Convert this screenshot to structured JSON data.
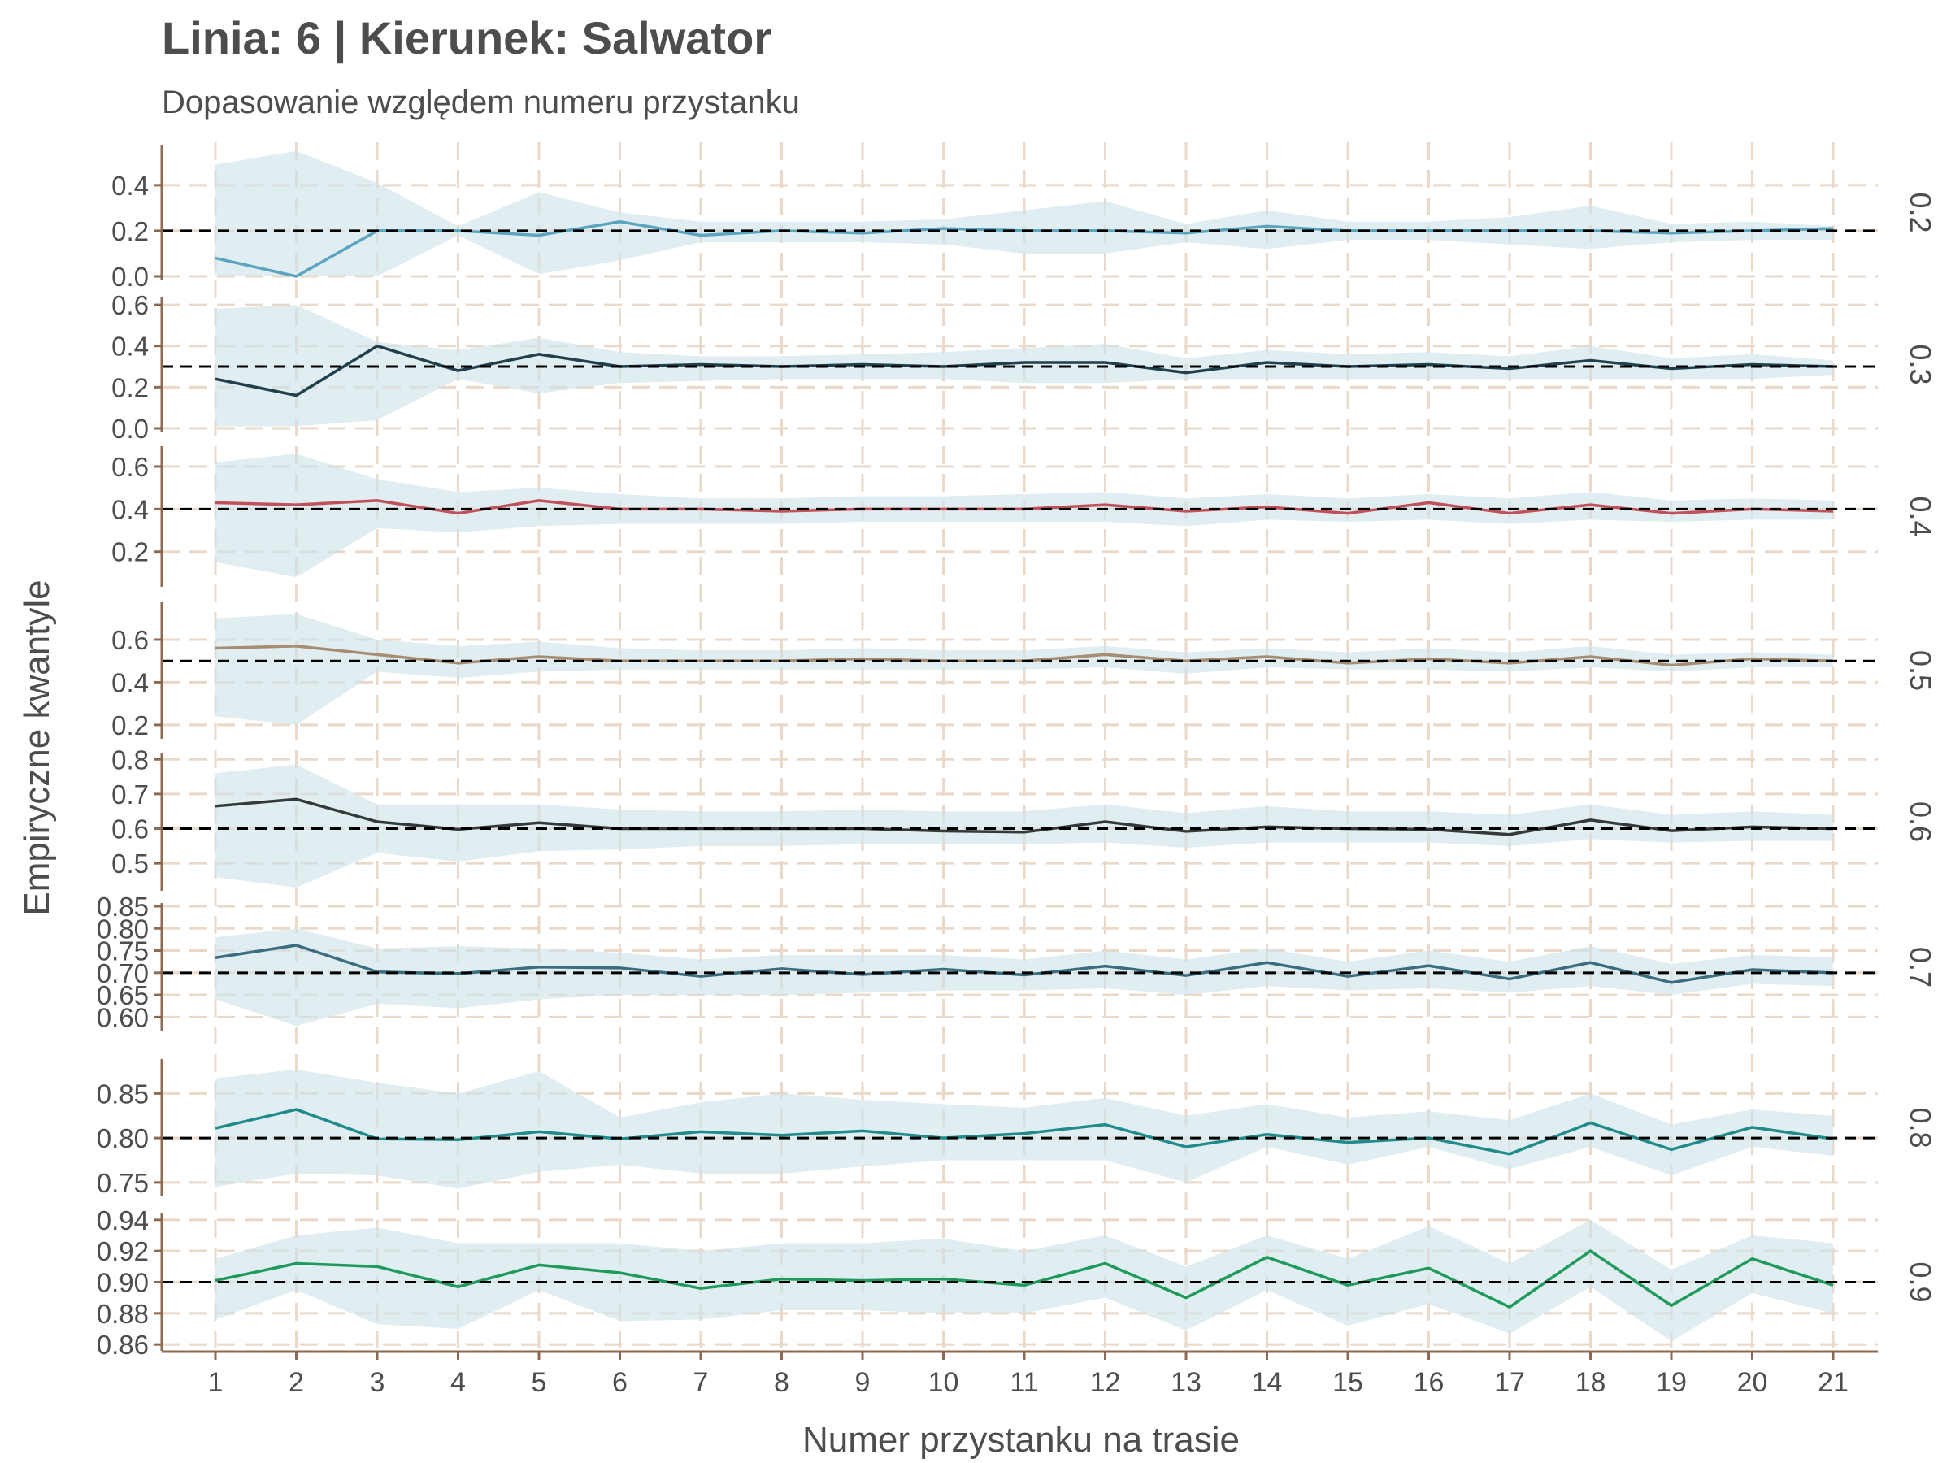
{
  "chart_data": {
    "type": "line",
    "title": "Linia: 6 | Kierunek: Salwator",
    "subtitle": "Dopasowanie względem numeru przystanku",
    "xlabel": "Numer przystanku na trasie",
    "ylabel": "Empiryczne kwantyle",
    "x": [
      1,
      2,
      3,
      4,
      5,
      6,
      7,
      8,
      9,
      10,
      11,
      12,
      13,
      14,
      15,
      16,
      17,
      18,
      19,
      20,
      21
    ],
    "grid": true,
    "colors": {
      "band": "#cfe4ea",
      "axis": "#8b6a4f",
      "grid": "#ead8c8",
      "reference": "#000000",
      "text": "#4d4d4d"
    },
    "panels": [
      {
        "strip": "0.2",
        "reference": 0.2,
        "ylim": [
          0,
          0.56
        ],
        "yticks": [
          "0.0",
          "0.2",
          "0.4"
        ],
        "color": "#5ba4c0",
        "values": [
          0.08,
          0.0,
          0.2,
          0.2,
          0.18,
          0.24,
          0.18,
          0.2,
          0.19,
          0.21,
          0.2,
          0.2,
          0.19,
          0.22,
          0.2,
          0.2,
          0.2,
          0.2,
          0.19,
          0.2,
          0.21
        ],
        "lower": [
          0.0,
          0.0,
          0.0,
          0.18,
          0.01,
          0.07,
          0.15,
          0.15,
          0.15,
          0.14,
          0.1,
          0.1,
          0.15,
          0.12,
          0.16,
          0.16,
          0.14,
          0.12,
          0.15,
          0.16,
          0.16
        ],
        "upper": [
          0.49,
          0.55,
          0.41,
          0.22,
          0.37,
          0.28,
          0.24,
          0.24,
          0.24,
          0.25,
          0.29,
          0.33,
          0.23,
          0.29,
          0.24,
          0.24,
          0.26,
          0.31,
          0.23,
          0.24,
          0.22
        ]
      },
      {
        "strip": "0.3",
        "reference": 0.3,
        "ylim": [
          0,
          0.62
        ],
        "yticks": [
          "0.0",
          "0.2",
          "0.4",
          "0.6"
        ],
        "color": "#21404d",
        "values": [
          0.24,
          0.16,
          0.4,
          0.28,
          0.36,
          0.3,
          0.31,
          0.3,
          0.31,
          0.3,
          0.32,
          0.32,
          0.27,
          0.32,
          0.3,
          0.31,
          0.29,
          0.33,
          0.29,
          0.31,
          0.3
        ],
        "lower": [
          0.01,
          0.01,
          0.04,
          0.24,
          0.17,
          0.22,
          0.23,
          0.24,
          0.24,
          0.24,
          0.22,
          0.22,
          0.24,
          0.24,
          0.24,
          0.24,
          0.24,
          0.24,
          0.24,
          0.24,
          0.26
        ],
        "upper": [
          0.58,
          0.6,
          0.42,
          0.38,
          0.44,
          0.37,
          0.35,
          0.35,
          0.36,
          0.37,
          0.39,
          0.41,
          0.34,
          0.38,
          0.36,
          0.37,
          0.35,
          0.4,
          0.34,
          0.36,
          0.33
        ]
      },
      {
        "strip": "0.4",
        "reference": 0.4,
        "ylim": [
          0.05,
          0.68
        ],
        "yticks": [
          "0.2",
          "0.4",
          "0.6"
        ],
        "color": "#c0505a",
        "values": [
          0.43,
          0.42,
          0.44,
          0.38,
          0.44,
          0.4,
          0.4,
          0.39,
          0.4,
          0.4,
          0.4,
          0.42,
          0.39,
          0.41,
          0.38,
          0.43,
          0.38,
          0.42,
          0.38,
          0.4,
          0.39
        ],
        "lower": [
          0.15,
          0.08,
          0.31,
          0.29,
          0.32,
          0.33,
          0.33,
          0.33,
          0.34,
          0.34,
          0.34,
          0.34,
          0.32,
          0.35,
          0.34,
          0.35,
          0.33,
          0.35,
          0.34,
          0.35,
          0.35
        ],
        "upper": [
          0.62,
          0.66,
          0.54,
          0.48,
          0.5,
          0.47,
          0.45,
          0.45,
          0.46,
          0.46,
          0.47,
          0.48,
          0.45,
          0.47,
          0.45,
          0.47,
          0.45,
          0.48,
          0.44,
          0.45,
          0.44
        ]
      },
      {
        "strip": "0.5",
        "reference": 0.5,
        "ylim": [
          0.15,
          0.76
        ],
        "yticks": [
          "0.2",
          "0.4",
          "0.6"
        ],
        "color": "#a68c70",
        "values": [
          0.56,
          0.57,
          0.53,
          0.49,
          0.52,
          0.5,
          0.5,
          0.5,
          0.51,
          0.5,
          0.5,
          0.53,
          0.5,
          0.52,
          0.49,
          0.51,
          0.49,
          0.52,
          0.48,
          0.51,
          0.5
        ],
        "lower": [
          0.24,
          0.2,
          0.45,
          0.42,
          0.45,
          0.46,
          0.46,
          0.46,
          0.46,
          0.46,
          0.46,
          0.47,
          0.44,
          0.47,
          0.46,
          0.46,
          0.45,
          0.47,
          0.45,
          0.47,
          0.47
        ],
        "upper": [
          0.7,
          0.72,
          0.6,
          0.57,
          0.59,
          0.56,
          0.55,
          0.55,
          0.56,
          0.55,
          0.55,
          0.57,
          0.54,
          0.56,
          0.54,
          0.56,
          0.54,
          0.57,
          0.53,
          0.54,
          0.53
        ]
      },
      {
        "strip": "0.6",
        "reference": 0.6,
        "ylim": [
          0.43,
          0.81
        ],
        "yticks": [
          "0.5",
          "0.6",
          "0.7",
          "0.8"
        ],
        "color": "#34393a",
        "values": [
          0.665,
          0.685,
          0.62,
          0.598,
          0.617,
          0.6,
          0.6,
          0.6,
          0.6,
          0.593,
          0.59,
          0.62,
          0.592,
          0.605,
          0.6,
          0.598,
          0.583,
          0.625,
          0.594,
          0.605,
          0.6
        ],
        "lower": [
          0.46,
          0.43,
          0.53,
          0.505,
          0.535,
          0.54,
          0.55,
          0.55,
          0.555,
          0.555,
          0.555,
          0.56,
          0.545,
          0.56,
          0.56,
          0.56,
          0.55,
          0.57,
          0.56,
          0.565,
          0.565
        ],
        "upper": [
          0.76,
          0.785,
          0.67,
          0.67,
          0.67,
          0.655,
          0.65,
          0.65,
          0.655,
          0.65,
          0.65,
          0.67,
          0.645,
          0.665,
          0.65,
          0.65,
          0.64,
          0.67,
          0.64,
          0.65,
          0.64
        ]
      },
      {
        "strip": "0.7",
        "reference": 0.7,
        "ylim": [
          0.575,
          0.85
        ],
        "yticks": [
          "0.60",
          "0.65",
          "0.70",
          "0.75",
          "0.80",
          "0.85"
        ],
        "color": "#3b6d80",
        "values": [
          0.734,
          0.762,
          0.702,
          0.698,
          0.713,
          0.711,
          0.692,
          0.709,
          0.696,
          0.708,
          0.695,
          0.715,
          0.694,
          0.723,
          0.692,
          0.716,
          0.686,
          0.723,
          0.678,
          0.707,
          0.7
        ],
        "lower": [
          0.64,
          0.58,
          0.63,
          0.62,
          0.64,
          0.65,
          0.65,
          0.65,
          0.655,
          0.66,
          0.66,
          0.665,
          0.65,
          0.67,
          0.66,
          0.665,
          0.655,
          0.67,
          0.65,
          0.675,
          0.67
        ],
        "upper": [
          0.78,
          0.8,
          0.755,
          0.76,
          0.755,
          0.745,
          0.73,
          0.74,
          0.74,
          0.74,
          0.73,
          0.75,
          0.73,
          0.755,
          0.725,
          0.75,
          0.725,
          0.76,
          0.72,
          0.74,
          0.735
        ]
      },
      {
        "strip": "0.8",
        "reference": 0.8,
        "ylim": [
          0.738,
          0.885
        ],
        "yticks": [
          "0.75",
          "0.80",
          "0.85"
        ],
        "color": "#218a8a",
        "values": [
          0.811,
          0.832,
          0.799,
          0.798,
          0.807,
          0.799,
          0.807,
          0.803,
          0.808,
          0.8,
          0.805,
          0.815,
          0.79,
          0.804,
          0.795,
          0.8,
          0.782,
          0.817,
          0.787,
          0.812,
          0.799
        ],
        "lower": [
          0.745,
          0.76,
          0.758,
          0.743,
          0.762,
          0.77,
          0.76,
          0.76,
          0.768,
          0.775,
          0.775,
          0.775,
          0.75,
          0.79,
          0.77,
          0.79,
          0.765,
          0.79,
          0.758,
          0.79,
          0.78
        ],
        "upper": [
          0.867,
          0.877,
          0.862,
          0.85,
          0.875,
          0.823,
          0.84,
          0.85,
          0.843,
          0.838,
          0.834,
          0.845,
          0.825,
          0.838,
          0.823,
          0.83,
          0.82,
          0.85,
          0.815,
          0.832,
          0.825
        ]
      },
      {
        "strip": "0.9",
        "reference": 0.9,
        "ylim": [
          0.858,
          0.942
        ],
        "yticks": [
          "0.86",
          "0.88",
          "0.90",
          "0.92",
          "0.94"
        ],
        "color": "#1f9a5c",
        "values": [
          0.901,
          0.912,
          0.91,
          0.897,
          0.911,
          0.906,
          0.896,
          0.902,
          0.901,
          0.902,
          0.898,
          0.912,
          0.89,
          0.916,
          0.898,
          0.909,
          0.884,
          0.92,
          0.885,
          0.915,
          0.898
        ],
        "lower": [
          0.876,
          0.895,
          0.873,
          0.87,
          0.895,
          0.875,
          0.876,
          0.882,
          0.882,
          0.88,
          0.88,
          0.89,
          0.869,
          0.895,
          0.872,
          0.886,
          0.867,
          0.897,
          0.862,
          0.893,
          0.88
        ],
        "upper": [
          0.915,
          0.93,
          0.935,
          0.925,
          0.925,
          0.925,
          0.92,
          0.925,
          0.925,
          0.928,
          0.92,
          0.93,
          0.91,
          0.93,
          0.915,
          0.936,
          0.912,
          0.94,
          0.908,
          0.93,
          0.925
        ]
      }
    ]
  }
}
